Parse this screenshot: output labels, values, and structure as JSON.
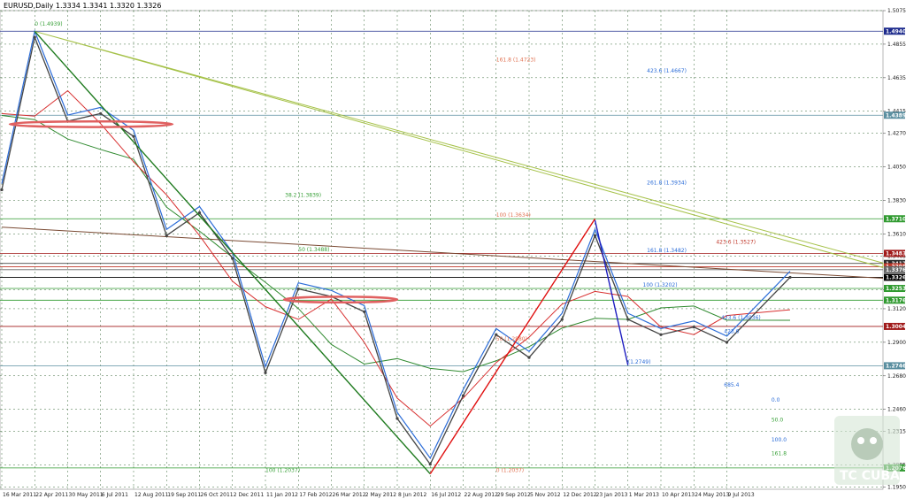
{
  "chart_data": {
    "type": "line",
    "title": "EURUSD,Daily  1.3334 1.3341 1.3320 1.3326",
    "symbol": "EURUSD",
    "timeframe": "Daily",
    "ohlc_readout": [
      "1.3334",
      "1.3341",
      "1.3320",
      "1.3326"
    ],
    "ylim": [
      1.1936,
      1.5075
    ],
    "y_ticks": [
      "1.5075",
      "1.4855",
      "1.4635",
      "1.4415",
      "1.4270",
      "1.4050",
      "1.3830",
      "1.3610",
      "1.3465",
      "1.3245",
      "1.3120",
      "1.2900",
      "1.2680",
      "1.2460",
      "1.2315",
      "1.2095",
      "1.1950"
    ],
    "x_ticks": [
      "16 Mar 2011",
      "22 Apr 2011",
      "30 May 2011",
      "6 Jul 2011",
      "12 Aug 2011",
      "19 Sep 2011",
      "26 Oct 2011",
      "2 Dec 2011",
      "11 Jan 2012",
      "17 Feb 2012",
      "26 Mar 2012",
      "2 May 2012",
      "8 Jun 2012",
      "16 Jul 2012",
      "22 Aug 2012",
      "29 Sep 2012",
      "5 Nov 2012",
      "12 Dec 2012",
      "23 Jan 2013",
      "1 Mar 2013",
      "10 Apr 2013",
      "24 May 2013",
      "9 Jul 2013"
    ],
    "price_series": {
      "name": "",
      "x": [
        "16 Mar 2011",
        "22 Apr 2011",
        "30 May 2011",
        "6 Jul 2011",
        "12 Aug 2011",
        "19 Sep 2011",
        "26 Oct 2011",
        "2 Dec 2011",
        "11 Jan 2012",
        "17 Feb 2012",
        "26 Mar 2012",
        "2 May 2012",
        "8 Jun 2012",
        "16 Jul 2012",
        "22 Aug 2012",
        "29 Sep 2012",
        "5 Nov 2012",
        "12 Dec 2012",
        "23 Jan 2013",
        "1 Mar 2013",
        "10 Apr 2013",
        "24 May 2013",
        "9 Jul 2013",
        "last"
      ],
      "values": [
        1.39,
        1.49,
        1.435,
        1.44,
        1.425,
        1.36,
        1.375,
        1.345,
        1.27,
        1.325,
        1.32,
        1.31,
        1.24,
        1.21,
        1.255,
        1.295,
        1.28,
        1.305,
        1.36,
        1.305,
        1.295,
        1.3,
        1.29,
        1.3326
      ]
    },
    "price_levels": [
      {
        "label": "1.4940",
        "value": 1.494,
        "color": "#1c2a8c"
      },
      {
        "label": "1.4389",
        "value": 1.4389,
        "color": "#5b8fa0"
      },
      {
        "label": "1.3710",
        "value": 1.371,
        "color": "#2f9a2f"
      },
      {
        "label": "1.3483",
        "value": 1.3483,
        "color": "#a01a1a"
      },
      {
        "label": "1.3417",
        "value": 1.3417,
        "color": "#2a2a2a"
      },
      {
        "label": "1.3395",
        "value": 1.3395,
        "color": "#c0392b"
      },
      {
        "label": "1.3376",
        "value": 1.3376,
        "color": "#666666"
      },
      {
        "label": "1.3326",
        "value": 1.3326,
        "color": "#000000"
      },
      {
        "label": "1.3253",
        "value": 1.3253,
        "color": "#2f9a2f"
      },
      {
        "label": "1.3176",
        "value": 1.3176,
        "color": "#2f9a2f"
      },
      {
        "label": "1.3004",
        "value": 1.3004,
        "color": "#a01a1a"
      },
      {
        "label": "1.2746",
        "value": 1.2746,
        "color": "#5b8fa0"
      },
      {
        "label": "1.2076",
        "value": 1.2076,
        "color": "#2f9a2f"
      }
    ],
    "fib_labels": [
      {
        "text": "0 (1.4939)",
        "color": "#3aa13a",
        "x": "22 Apr 2011",
        "y": 1.4975
      },
      {
        "text": "161.8 (1.4723)",
        "color": "#e07050",
        "x": "29 Sep 2012",
        "y": 1.474
      },
      {
        "text": "423.6 (1.4667)",
        "color": "#2b6cd8",
        "x": "24 Mar 2013",
        "y": 1.4668
      },
      {
        "text": "38.2 (1.3839)",
        "color": "#3aa13a",
        "x": "2 Feb 2012",
        "y": 1.3855
      },
      {
        "text": "261.8 (1.3934)",
        "color": "#2b6cd8",
        "x": "24 Mar 2013",
        "y": 1.3935
      },
      {
        "text": "100 (1.3634)",
        "color": "#e07050",
        "x": "29 Sep 2012",
        "y": 1.3722
      },
      {
        "text": "423.6 (1.3527)",
        "color": "#c0392b",
        "x": "24 Jun 2013",
        "y": 1.3545
      },
      {
        "text": "50 (1.3488)",
        "color": "#3aa13a",
        "x": "17 Feb 2012",
        "y": 1.3498
      },
      {
        "text": "161.8 (1.3482)",
        "color": "#2b6cd8",
        "x": "24 Mar 2013",
        "y": 1.349
      },
      {
        "text": "100 (1.3202)",
        "color": "#2b6cd8",
        "x": "19 Mar 2013",
        "y": 1.3265
      },
      {
        "text": "423.6 (1.3036)",
        "color": "#2b6cd8",
        "x": "1 Jul 2013",
        "y": 1.305
      },
      {
        "text": "423.6",
        "color": "#2b6cd8",
        "x": "5 Jul 2013",
        "y": 1.296
      },
      {
        "text": "(1.2749)",
        "color": "#2b6cd8",
        "x": "1 Mar 2013",
        "y": 1.276
      },
      {
        "text": "50 (1.2880)",
        "color": "#e07050",
        "x": "29 Sep 2012",
        "y": 1.291
      },
      {
        "text": "685.4",
        "color": "#2b6cd8",
        "x": "5 Jul 2013",
        "y": 1.261
      },
      {
        "text": "100 (1.2037)",
        "color": "#3aa13a",
        "x": "11 Jan 2012",
        "y": 1.205
      },
      {
        "text": "0 (1.2037)",
        "color": "#e07050",
        "x": "29 Sep 2012",
        "y": 1.205
      },
      {
        "text": "0.0",
        "color": "#2b6cd8",
        "x": "30 Aug 2013",
        "y": 1.251
      },
      {
        "text": "50.0",
        "color": "#3aa13a",
        "x": "30 Aug 2013",
        "y": 1.238
      },
      {
        "text": "100.0",
        "color": "#2b6cd8",
        "x": "30 Aug 2013",
        "y": 1.225
      },
      {
        "text": "161.8",
        "color": "#3aa13a",
        "x": "30 Aug 2013",
        "y": 1.216
      }
    ],
    "watermark": "TC CUBA",
    "grid": true
  },
  "colors": {
    "background": "#ffffff",
    "grid": "#3b6a3b",
    "price": "#444444",
    "ma_fast": "#2b6cd8",
    "ma_mid": "#d83030",
    "ma_slow": "#2f8a2f",
    "ma_long": "#7a4a33",
    "downtrend": "#1e7a1e",
    "uptrend": "#e01010",
    "drop": "#1e1ec0",
    "resistance": "#a6c24a"
  }
}
